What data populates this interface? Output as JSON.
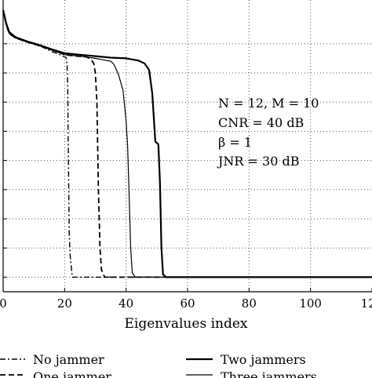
{
  "chart_data": {
    "type": "line",
    "title": "",
    "xlabel": "Eigenvalues index",
    "ylabel": "",
    "xlim": [
      0,
      120
    ],
    "ylim": [
      -200,
      0
    ],
    "grid": true,
    "x_ticks": [
      0,
      20,
      40,
      60,
      80,
      100,
      120
    ],
    "x_tick_labels": [
      "0",
      "20",
      "40",
      "60",
      "80",
      "100",
      "120"
    ],
    "y_ticks": [
      -190,
      -170,
      -150,
      -130,
      -110,
      -90,
      -70,
      -50,
      -30
    ],
    "annotation_lines": [
      "N = 12, M = 10",
      "CNR = 40 dB",
      "β = 1",
      "JNR = 30 dB"
    ],
    "legend_position": "bottom",
    "series": [
      {
        "name": "No jammer",
        "style": "dashdot",
        "color": "#000000",
        "x": [
          0,
          1,
          2,
          4,
          6,
          8,
          10,
          12,
          14,
          16,
          18,
          19,
          20,
          20.5,
          20.8,
          21,
          21.2,
          21.5,
          21.8,
          22.5,
          25,
          120
        ],
        "y": [
          -7,
          -17,
          -23,
          -25,
          -27.5,
          -28.5,
          -29.5,
          -31.5,
          -33.5,
          -35.5,
          -37,
          -38,
          -39,
          -39.5,
          -45,
          -60,
          -100,
          -160,
          -175,
          -190,
          -190,
          -190
        ]
      },
      {
        "name": "One jammer",
        "style": "dashed",
        "color": "#000000",
        "x": [
          0,
          1,
          2,
          4,
          8,
          12,
          16,
          20,
          24,
          27,
          28.5,
          29.5,
          30,
          30.5,
          31,
          31.5,
          32,
          33,
          40,
          120
        ],
        "y": [
          -7,
          -17,
          -23,
          -26,
          -29,
          -31.5,
          -34,
          -37.5,
          -38.5,
          -39,
          -40.5,
          -43.5,
          -50,
          -70,
          -130,
          -170,
          -185,
          -190,
          -190,
          -190
        ]
      },
      {
        "name": "Two jammers",
        "style": "solid-thick",
        "color": "#000000",
        "x": [
          0,
          1,
          2,
          4,
          8,
          12,
          16,
          20,
          25,
          30,
          35,
          40,
          44,
          46,
          47.5,
          48.5,
          49.5,
          50.5,
          51,
          51.5,
          52,
          53,
          60,
          120
        ],
        "y": [
          -7,
          -16,
          -22,
          -25.5,
          -28.5,
          -31,
          -34,
          -36.5,
          -37.5,
          -38.5,
          -39.5,
          -40,
          -41.5,
          -43.5,
          -48,
          -64,
          -97,
          -99,
          -125,
          -170,
          -188,
          -190,
          -190,
          -190
        ]
      },
      {
        "name": "Three jammers",
        "style": "solid-thin",
        "color": "#000000",
        "x": [
          0,
          1,
          2,
          4,
          8,
          12,
          16,
          20,
          25,
          30,
          35,
          36,
          37.5,
          39,
          40,
          40.5,
          41,
          41.5,
          42,
          43,
          50,
          120
        ],
        "y": [
          -7,
          -17,
          -23,
          -26,
          -29,
          -31.5,
          -34.5,
          -37.5,
          -38.5,
          -40,
          -42,
          -44,
          -51,
          -62,
          -83,
          -100,
          -135,
          -170,
          -187,
          -190,
          -190,
          -190
        ]
      }
    ]
  }
}
